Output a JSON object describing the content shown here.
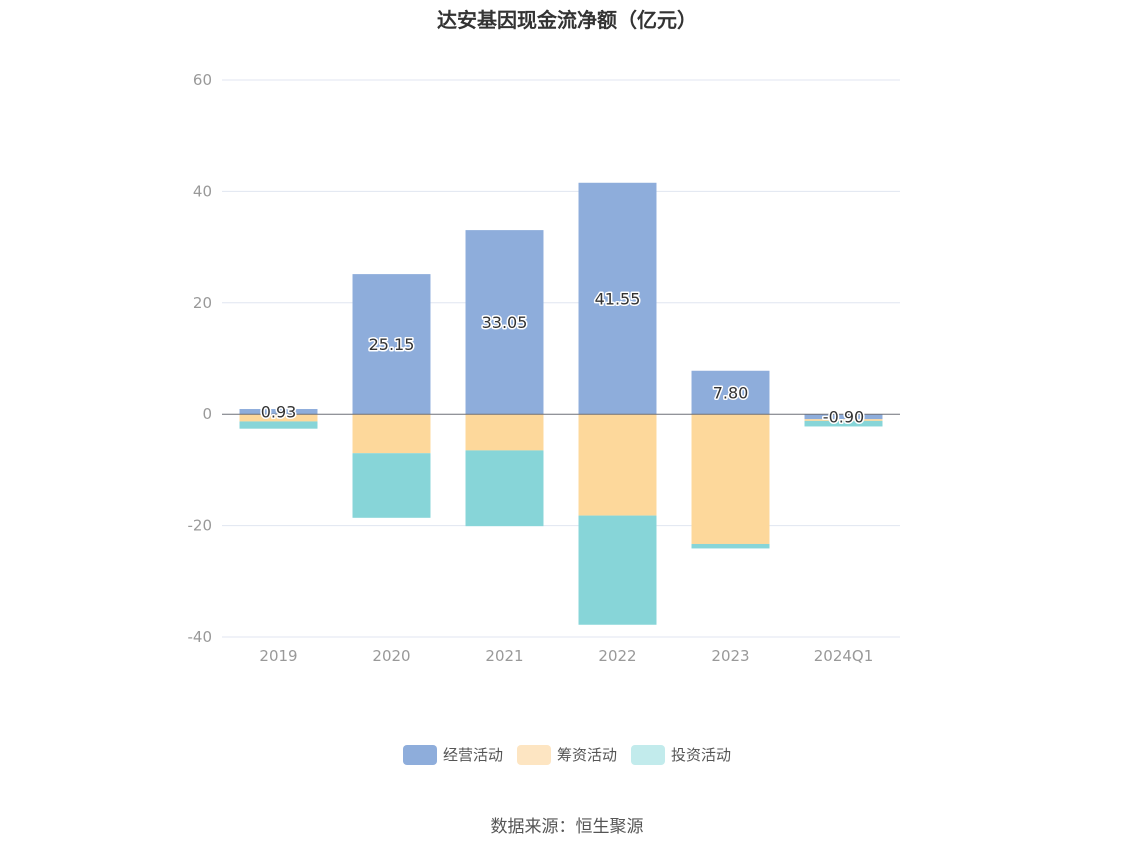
{
  "chart_data": {
    "type": "bar",
    "stacked": true,
    "title": "达安基因现金流净额（亿元）",
    "categories": [
      "2019",
      "2020",
      "2021",
      "2022",
      "2023",
      "2024Q1"
    ],
    "ylim": [
      -40,
      60
    ],
    "yticks": [
      "60",
      "40",
      "20",
      "0",
      "-20",
      "-40"
    ],
    "grid": true,
    "legend_position": "bottom",
    "series": [
      {
        "name": "经营活动",
        "color": "#8eaddb",
        "values": [
          0.93,
          25.15,
          33.05,
          41.55,
          7.8,
          -0.9
        ],
        "labels": [
          "0.93",
          "25.15",
          "33.05",
          "41.55",
          "7.80",
          "-0.90"
        ]
      },
      {
        "name": "筹资活动",
        "color": "#fdd89b",
        "values": [
          -1.3,
          -7.0,
          -6.5,
          -18.2,
          -23.3,
          -0.3
        ]
      },
      {
        "name": "投资活动",
        "color": "#87d5d8",
        "values": [
          -1.3,
          -11.6,
          -13.6,
          -19.6,
          -0.8,
          -1.0
        ]
      }
    ],
    "legend_colors": [
      "#8eaddb",
      "#fde5c2",
      "#c2ebec"
    ]
  },
  "source": "数据来源：恒生聚源"
}
